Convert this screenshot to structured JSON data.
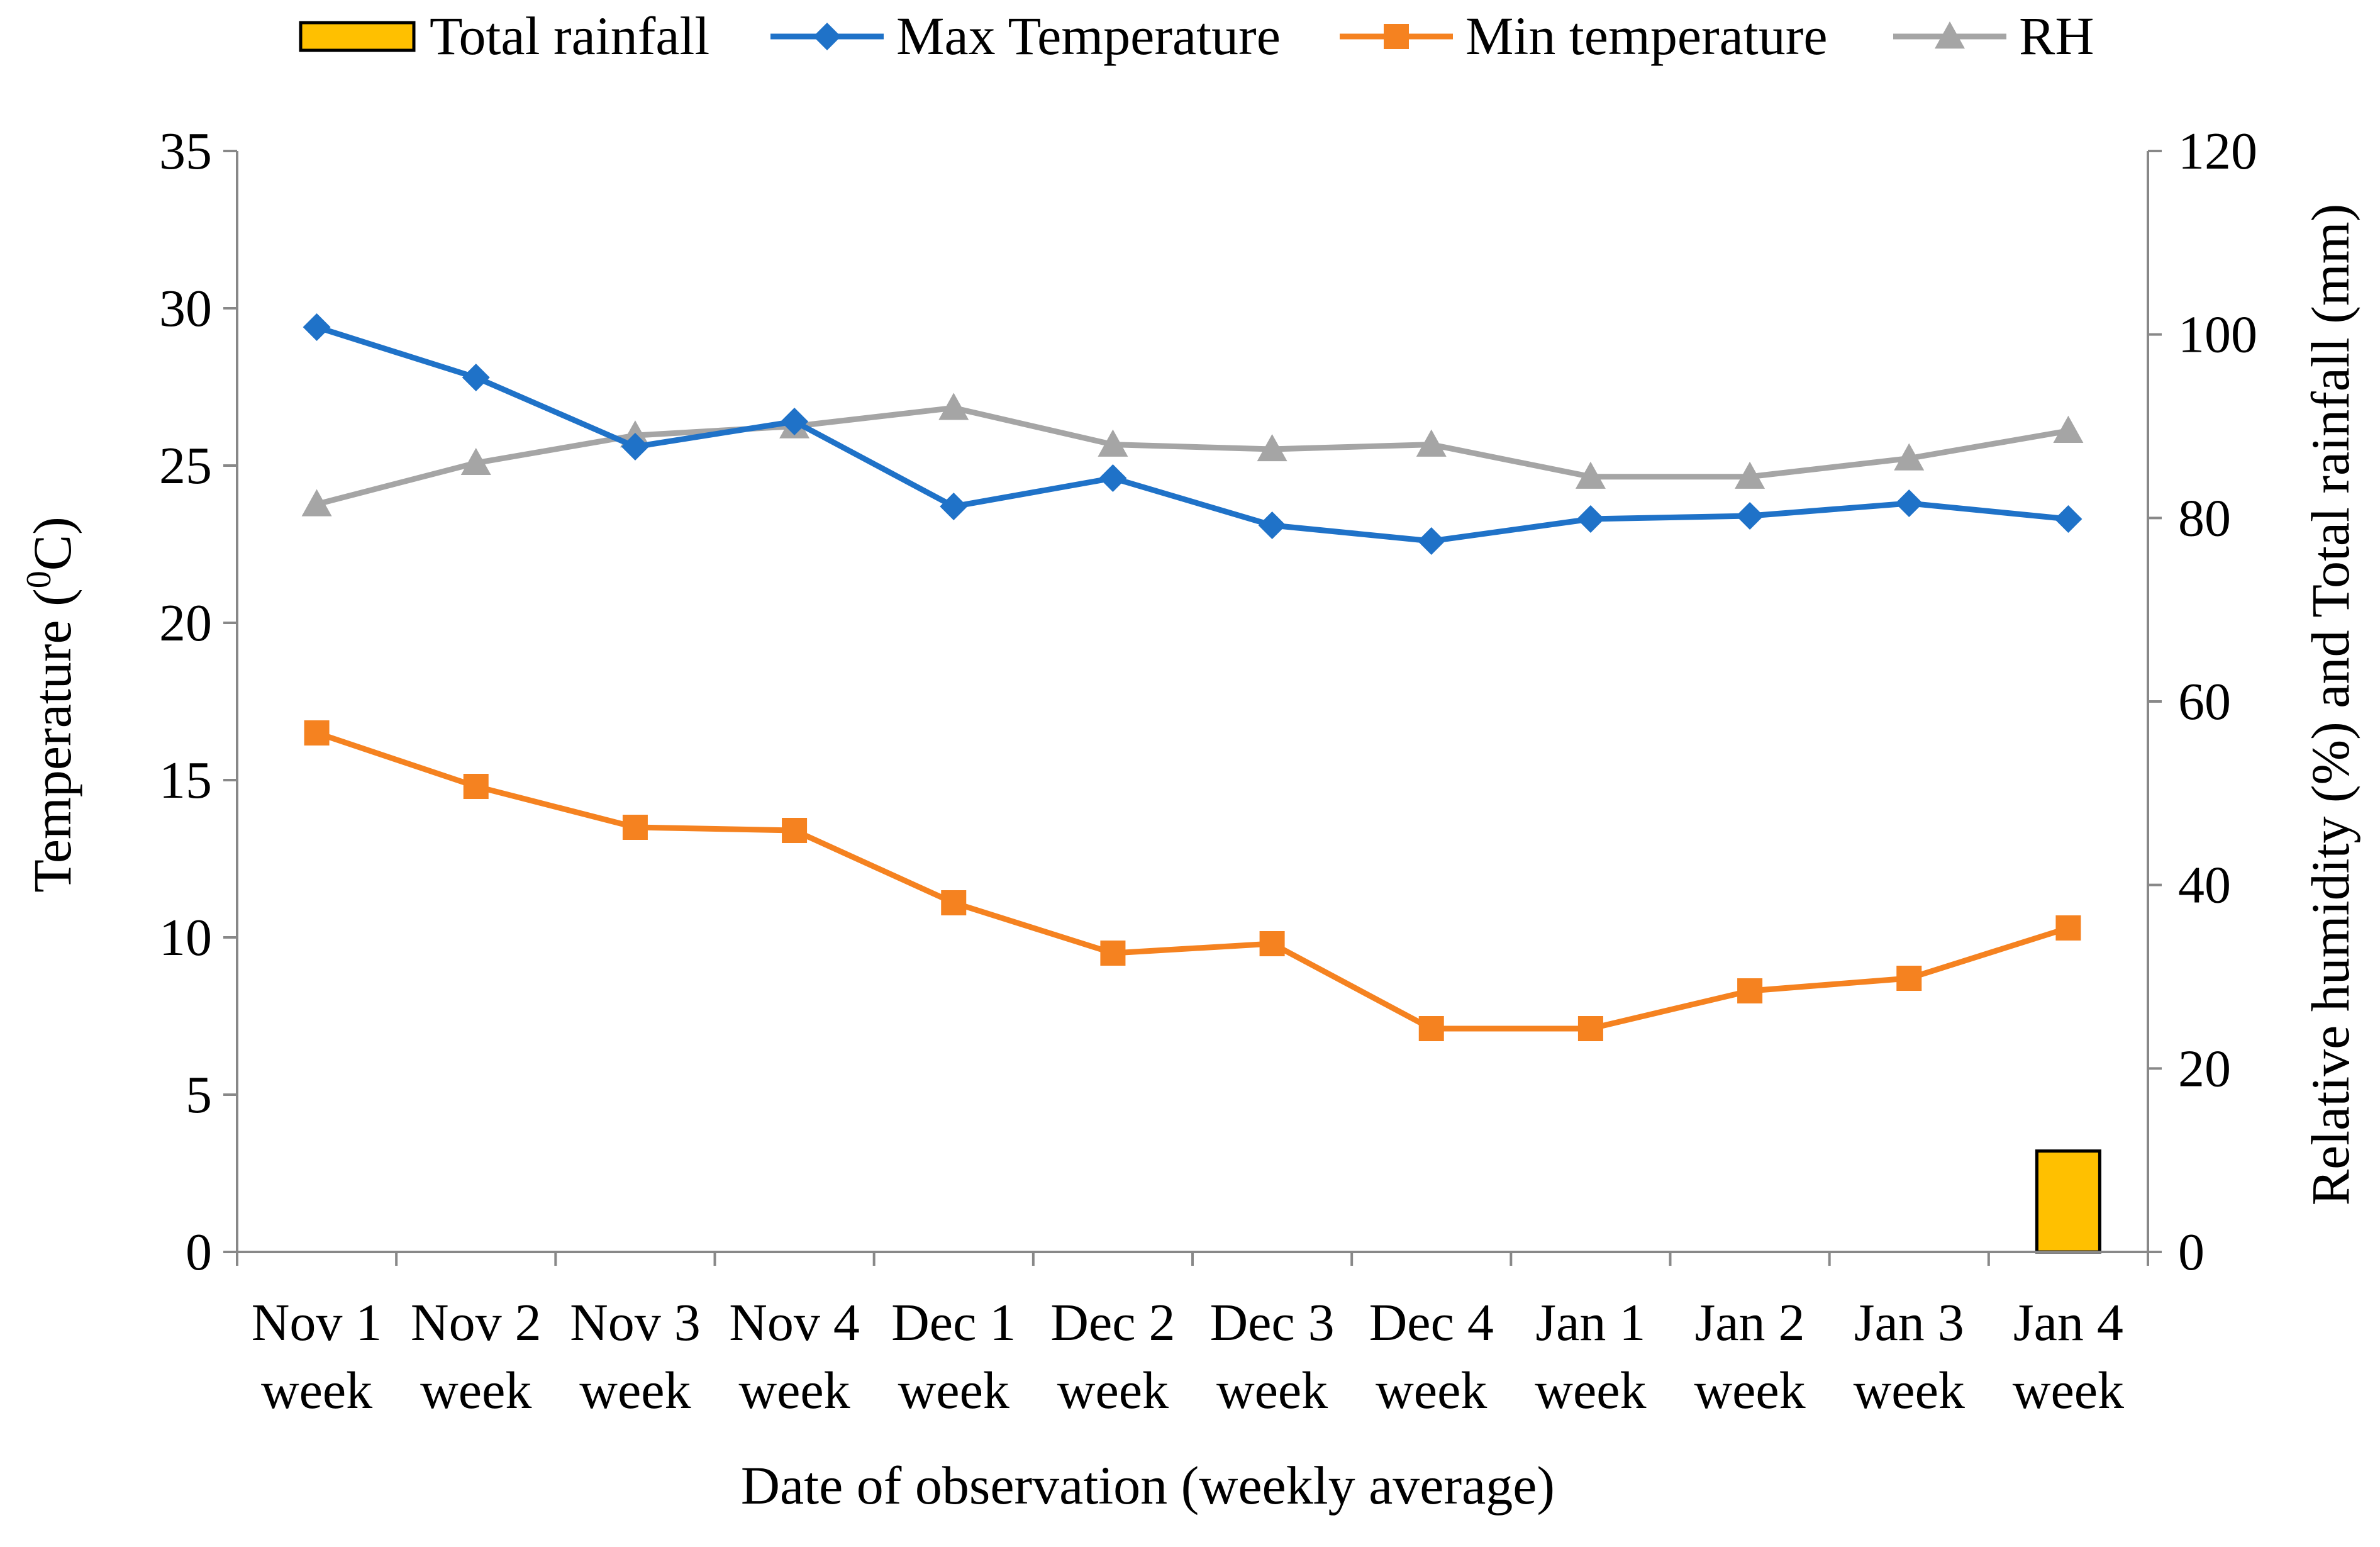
{
  "chart_data": {
    "type": "line",
    "title": "",
    "categories": [
      [
        "Nov 1",
        "week"
      ],
      [
        "Nov 2",
        "week"
      ],
      [
        "Nov 3",
        "week"
      ],
      [
        "Nov 4",
        "week"
      ],
      [
        "Dec 1",
        "week"
      ],
      [
        "Dec 2",
        "week"
      ],
      [
        "Dec 3",
        "week"
      ],
      [
        "Dec 4",
        "week"
      ],
      [
        "Jan 1",
        "week"
      ],
      [
        "Jan 2",
        "week"
      ],
      [
        "Jan 3",
        "week"
      ],
      [
        "Jan 4",
        "week"
      ]
    ],
    "xlabel": "Date of observation (weekly average)",
    "ylabel_left": {
      "pre": "Temperature (",
      "sup": "0",
      "post": "C)"
    },
    "ylabel_right": "Relative humidity (%) and Total rainfall (mm)",
    "ylim_left": [
      0,
      35
    ],
    "yticks_left": [
      "0",
      "5",
      "10",
      "15",
      "20",
      "25",
      "30",
      "35"
    ],
    "ylim_right": [
      0,
      120
    ],
    "yticks_right": [
      "0",
      "20",
      "40",
      "60",
      "80",
      "100",
      "120"
    ],
    "grid": false,
    "legend_position": "top",
    "series": [
      {
        "name": "Total rainfall",
        "kind": "bar",
        "axis": "right",
        "color": "#FFC000",
        "edge": "#000000",
        "values": [
          0,
          0,
          0,
          0,
          0,
          0,
          0,
          0,
          0,
          0,
          0,
          11
        ]
      },
      {
        "name": "Max Temperature",
        "kind": "line",
        "marker": "diamond",
        "axis": "left",
        "color": "#1F72C8",
        "values": [
          29.4,
          27.8,
          25.6,
          26.4,
          23.7,
          24.6,
          23.1,
          22.6,
          23.3,
          23.4,
          23.8,
          23.3
        ]
      },
      {
        "name": "Min temperature",
        "kind": "line",
        "marker": "square",
        "axis": "left",
        "color": "#F58220",
        "values": [
          16.5,
          14.8,
          13.5,
          13.4,
          11.1,
          9.5,
          9.8,
          7.1,
          7.1,
          8.3,
          8.7,
          10.3
        ]
      },
      {
        "name": "RH",
        "kind": "line",
        "marker": "triangle",
        "axis": "right",
        "color": "#A5A5A5",
        "values": [
          81.5,
          86,
          89,
          90,
          92,
          88,
          87.5,
          88,
          84.5,
          84.5,
          86.5,
          89.5
        ]
      }
    ]
  }
}
